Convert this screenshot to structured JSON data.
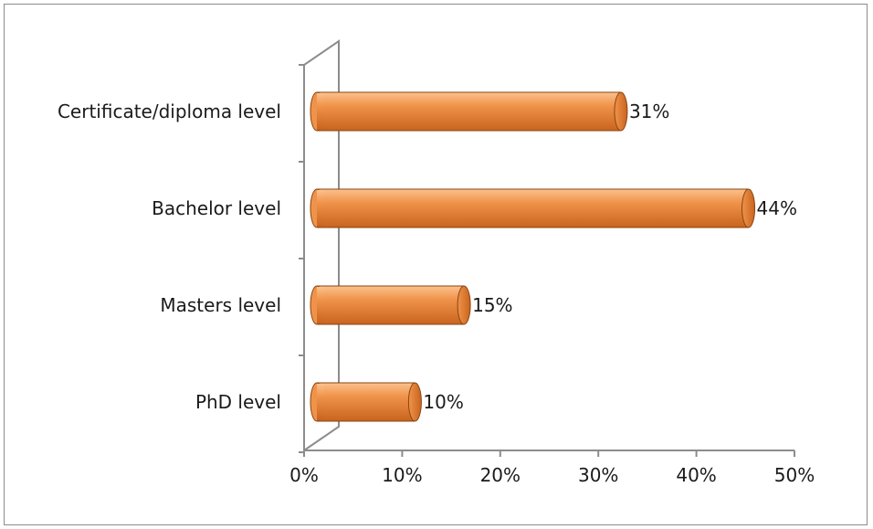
{
  "chart_data": {
    "type": "bar",
    "orientation": "horizontal",
    "style": "3d-cylinder",
    "categories": [
      "Certificate/diploma level",
      "Bachelor level",
      "Masters level",
      "PhD level"
    ],
    "values": [
      31,
      44,
      15,
      10
    ],
    "data_labels": [
      "31%",
      "44%",
      "15%",
      "10%"
    ],
    "xlim": [
      0,
      50
    ],
    "x_ticks": [
      0,
      10,
      20,
      30,
      40,
      50
    ],
    "x_tick_labels": [
      "0%",
      "10%",
      "20%",
      "30%",
      "40%",
      "50%"
    ],
    "title": "",
    "xlabel": "",
    "ylabel": "",
    "grid": false,
    "legend": "none",
    "colors": {
      "bar_light": "#fbc28e",
      "bar_mid": "#f0934a",
      "bar_dark": "#c8641f",
      "bar_edge": "#8a4512",
      "axis": "#8c8c8c"
    }
  }
}
